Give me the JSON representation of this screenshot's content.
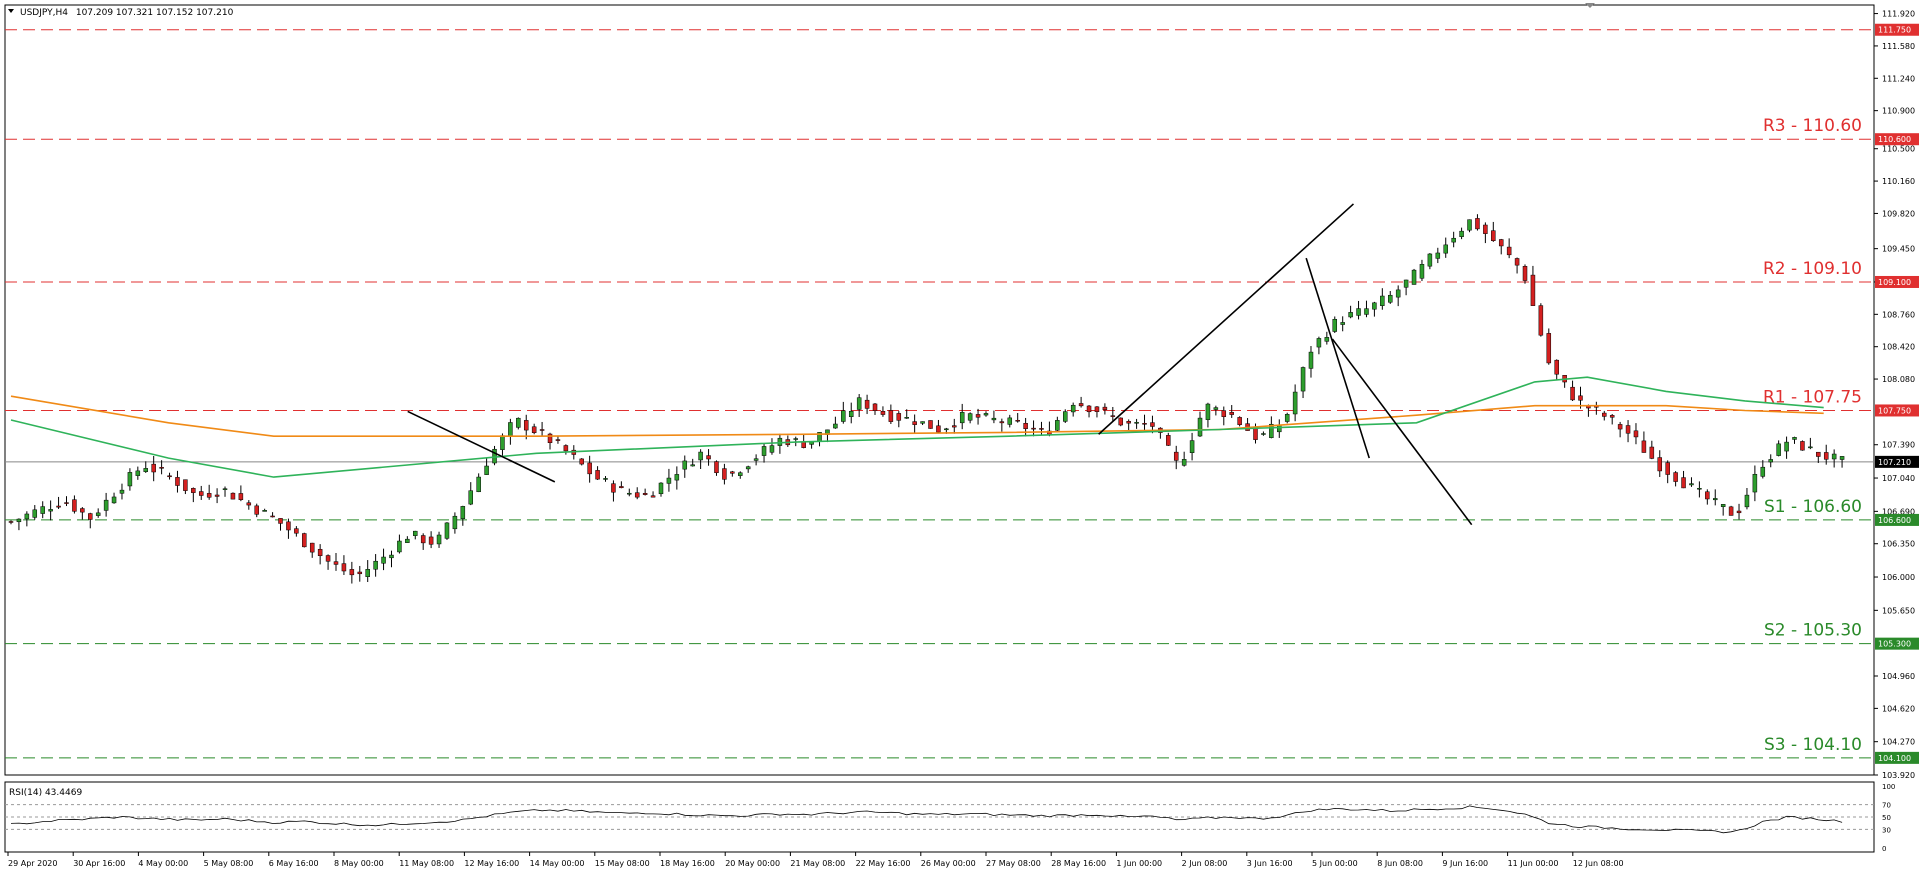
{
  "header": {
    "symbol_label": "USDJPY,H4",
    "ohlc_text": "107.209 107.321 107.152 107.210"
  },
  "colors": {
    "bull": "#2e9e2e",
    "bear": "#d42020",
    "resistance": "#e03030",
    "support": "#2a8a2a",
    "ma_green": "#2fb35a",
    "ma_orange": "#f08a16",
    "trend": "#000000",
    "rsi": "#000000",
    "price_box_dark": "#000000"
  },
  "chart_data": {
    "type": "candlestick",
    "price_axis": {
      "min": 103.92,
      "max": 112.01,
      "ticks": [
        "111.920",
        "111.580",
        "111.240",
        "110.900",
        "110.500",
        "110.160",
        "109.820",
        "109.450",
        "109.100",
        "108.760",
        "108.420",
        "108.080",
        "107.390",
        "107.040",
        "106.690",
        "106.350",
        "106.000",
        "105.650",
        "104.960",
        "104.620",
        "104.270",
        "103.920"
      ]
    },
    "levels": [
      {
        "name": "R3",
        "label": "R3 - 110.60",
        "price": 110.6,
        "box": "110.600",
        "kind": "resistance"
      },
      {
        "name": "R2",
        "label": "R2 - 109.10",
        "price": 109.1,
        "box": "109.100",
        "kind": "resistance"
      },
      {
        "name": "R1",
        "label": "R1 - 107.75",
        "price": 107.75,
        "box": "107.750",
        "kind": "resistance"
      },
      {
        "name": "S1",
        "label": "S1 - 106.60",
        "price": 106.6,
        "box": "106.600",
        "kind": "support"
      },
      {
        "name": "S2",
        "label": "S2 - 105.30",
        "price": 105.3,
        "box": "105.300",
        "kind": "support"
      },
      {
        "name": "S3",
        "label": "S3 - 104.10",
        "price": 104.1,
        "box": "104.100",
        "kind": "support"
      }
    ],
    "top_level": {
      "price": 111.75,
      "box": "111.750"
    },
    "current_price": {
      "price": 107.21,
      "box": "107.210"
    },
    "time_labels": [
      "29 Apr 2020",
      "30 Apr 16:00",
      "4 May 00:00",
      "5 May 08:00",
      "6 May 16:00",
      "8 May 00:00",
      "11 May 08:00",
      "12 May 16:00",
      "14 May 00:00",
      "15 May 08:00",
      "18 May 16:00",
      "20 May 00:00",
      "21 May 08:00",
      "22 May 16:00",
      "26 May 00:00",
      "27 May 08:00",
      "28 May 16:00",
      "1 Jun 00:00",
      "2 Jun 08:00",
      "3 Jun 16:00",
      "5 Jun 00:00",
      "8 Jun 08:00",
      "9 Jun 16:00",
      "11 Jun 00:00",
      "12 Jun 08:00"
    ],
    "closes": [
      106.58,
      106.7,
      106.8,
      106.62,
      106.92,
      107.18,
      107.05,
      106.85,
      106.92,
      106.75,
      106.6,
      106.38,
      106.15,
      106.0,
      106.2,
      106.45,
      106.35,
      106.75,
      107.25,
      107.65,
      107.5,
      107.3,
      107.05,
      106.9,
      106.85,
      107.1,
      107.3,
      107.05,
      107.25,
      107.45,
      107.4,
      107.6,
      107.85,
      107.7,
      107.65,
      107.55,
      107.7,
      107.65,
      107.6,
      107.5,
      107.85,
      107.75,
      107.6,
      107.6,
      107.15,
      107.8,
      107.7,
      107.45,
      107.65,
      108.4,
      108.7,
      108.8,
      108.95,
      109.2,
      109.5,
      109.75,
      109.5,
      109.2,
      108.2,
      107.85,
      107.7,
      107.5,
      107.2,
      107.0,
      106.8,
      106.65,
      107.2,
      107.45,
      107.3,
      107.21
    ],
    "ma_green": [
      [
        0,
        107.65
      ],
      [
        60,
        107.25
      ],
      [
        100,
        107.05
      ],
      [
        200,
        107.3
      ],
      [
        300,
        107.42
      ],
      [
        380,
        107.48
      ],
      [
        460,
        107.55
      ],
      [
        535,
        107.62
      ],
      [
        580,
        108.05
      ],
      [
        600,
        108.1
      ],
      [
        630,
        107.95
      ],
      [
        660,
        107.85
      ],
      [
        690,
        107.78
      ]
    ],
    "ma_orange": [
      [
        0,
        107.9
      ],
      [
        60,
        107.62
      ],
      [
        100,
        107.48
      ],
      [
        200,
        107.48
      ],
      [
        300,
        107.5
      ],
      [
        380,
        107.52
      ],
      [
        460,
        107.55
      ],
      [
        535,
        107.7
      ],
      [
        580,
        107.8
      ],
      [
        600,
        107.8
      ],
      [
        630,
        107.8
      ],
      [
        660,
        107.75
      ],
      [
        690,
        107.72
      ]
    ],
    "trendlines": [
      {
        "from": [
          151,
          107.74
        ],
        "to": [
          207,
          107.0
        ]
      },
      {
        "from": [
          414,
          107.5
        ],
        "to": [
          511,
          109.92
        ]
      },
      {
        "from": [
          493,
          109.35
        ],
        "to": [
          517,
          107.25
        ]
      },
      {
        "from": [
          503,
          108.5
        ],
        "to": [
          556,
          106.55
        ]
      }
    ],
    "rsi": {
      "label": "RSI(14) 43.4469",
      "ticks": [
        "100",
        "70",
        "50",
        "30",
        "0"
      ],
      "levels": [
        70,
        50,
        30
      ],
      "values": [
        38,
        42,
        45,
        47,
        50,
        48,
        46,
        45,
        47,
        44,
        41,
        43,
        40,
        38,
        37,
        40,
        42,
        45,
        52,
        58,
        61,
        60,
        58,
        56,
        57,
        55,
        53,
        52,
        53,
        55,
        54,
        56,
        58,
        57,
        55,
        54,
        55,
        54,
        53,
        52,
        53,
        54,
        50,
        51,
        45,
        48,
        50,
        47,
        52,
        61,
        63,
        62,
        60,
        62,
        64,
        66,
        63,
        55,
        40,
        35,
        33,
        31,
        30,
        28,
        27,
        26,
        42,
        50,
        47,
        43
      ]
    }
  }
}
